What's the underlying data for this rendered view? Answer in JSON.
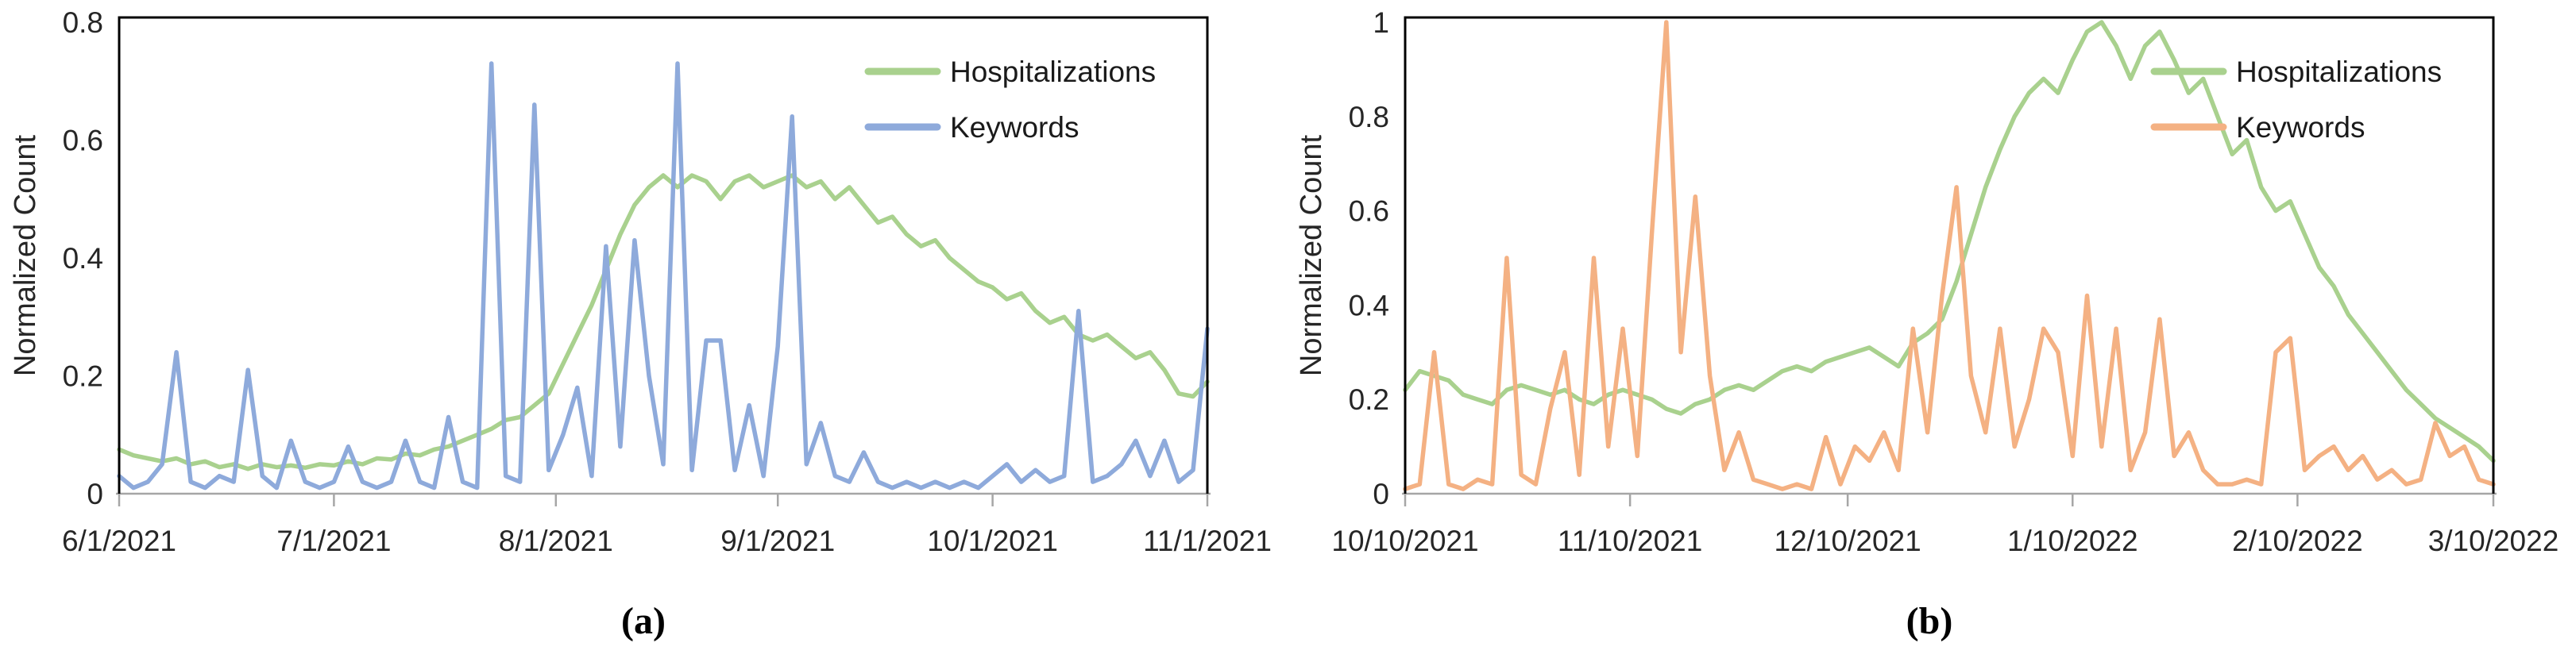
{
  "figure": {
    "ylabel": "Normalized Count",
    "legend": {
      "hospitalizations": "Hospitalizations",
      "keywords": "Keywords"
    },
    "colors": {
      "hospitalizations": "#A9D18E",
      "keywords_panel_a": "#8EAADB",
      "keywords_panel_b": "#F4B183",
      "axis_text": "#262626",
      "plot_border": "#000000",
      "baseline": "#A6A6A6"
    }
  },
  "chart_data": [
    {
      "id": "a",
      "type": "line",
      "caption": "(a)",
      "title": "",
      "xlabel": "",
      "ylabel": "Normalized Count",
      "ylim": [
        0,
        0.8
      ],
      "yticks": [
        0,
        0.2,
        0.4,
        0.6,
        0.8
      ],
      "ytick_labels": [
        "0",
        "0.2",
        "0.4",
        "0.6",
        "0.8"
      ],
      "xtick_labels": [
        "6/1/2021",
        "7/1/2021",
        "8/1/2021",
        "9/1/2021",
        "10/1/2021",
        "11/1/2021"
      ],
      "xticks_days": [
        0,
        30,
        61,
        92,
        122,
        152
      ],
      "x_max": 152,
      "grid": false,
      "legend_position": "top-right-inside",
      "x": [
        0,
        2,
        4,
        6,
        8,
        10,
        12,
        14,
        16,
        18,
        20,
        22,
        24,
        26,
        28,
        30,
        32,
        34,
        36,
        38,
        40,
        42,
        44,
        46,
        48,
        50,
        52,
        54,
        56,
        58,
        60,
        62,
        64,
        66,
        68,
        70,
        72,
        74,
        76,
        78,
        80,
        82,
        84,
        86,
        88,
        90,
        92,
        94,
        96,
        98,
        100,
        102,
        104,
        106,
        108,
        110,
        112,
        114,
        116,
        118,
        120,
        122,
        124,
        126,
        128,
        130,
        132,
        134,
        136,
        138,
        140,
        142,
        144,
        146,
        148,
        150,
        152
      ],
      "series": [
        {
          "name": "Hospitalizations",
          "color": "#A9D18E",
          "values": [
            0.075,
            0.065,
            0.06,
            0.055,
            0.06,
            0.05,
            0.055,
            0.045,
            0.05,
            0.042,
            0.05,
            0.045,
            0.048,
            0.044,
            0.05,
            0.048,
            0.055,
            0.05,
            0.06,
            0.058,
            0.068,
            0.065,
            0.075,
            0.08,
            0.09,
            0.1,
            0.11,
            0.125,
            0.13,
            0.15,
            0.17,
            0.22,
            0.27,
            0.32,
            0.38,
            0.44,
            0.49,
            0.52,
            0.54,
            0.52,
            0.54,
            0.53,
            0.5,
            0.53,
            0.54,
            0.52,
            0.53,
            0.54,
            0.52,
            0.53,
            0.5,
            0.52,
            0.49,
            0.46,
            0.47,
            0.44,
            0.42,
            0.43,
            0.4,
            0.38,
            0.36,
            0.35,
            0.33,
            0.34,
            0.31,
            0.29,
            0.3,
            0.27,
            0.26,
            0.27,
            0.25,
            0.23,
            0.24,
            0.21,
            0.17,
            0.165,
            0.19
          ]
        },
        {
          "name": "Keywords",
          "color": "#8EAADB",
          "values": [
            0.03,
            0.01,
            0.02,
            0.05,
            0.24,
            0.02,
            0.01,
            0.03,
            0.02,
            0.21,
            0.03,
            0.01,
            0.09,
            0.02,
            0.01,
            0.02,
            0.08,
            0.02,
            0.01,
            0.02,
            0.09,
            0.02,
            0.01,
            0.13,
            0.02,
            0.01,
            0.73,
            0.03,
            0.02,
            0.66,
            0.04,
            0.1,
            0.18,
            0.03,
            0.42,
            0.08,
            0.43,
            0.2,
            0.05,
            0.73,
            0.04,
            0.26,
            0.26,
            0.04,
            0.15,
            0.03,
            0.25,
            0.64,
            0.05,
            0.12,
            0.03,
            0.02,
            0.07,
            0.02,
            0.01,
            0.02,
            0.01,
            0.02,
            0.01,
            0.02,
            0.01,
            0.03,
            0.05,
            0.02,
            0.04,
            0.02,
            0.03,
            0.31,
            0.02,
            0.03,
            0.05,
            0.09,
            0.03,
            0.09,
            0.02,
            0.04,
            0.28
          ]
        }
      ]
    },
    {
      "id": "b",
      "type": "line",
      "caption": "(b)",
      "title": "",
      "xlabel": "",
      "ylabel": "Normalized Count",
      "ylim": [
        0,
        1
      ],
      "yticks": [
        0,
        0.2,
        0.4,
        0.6,
        0.8,
        1
      ],
      "ytick_labels": [
        "0",
        "0.2",
        "0.4",
        "0.6",
        "0.8",
        "1"
      ],
      "xtick_labels": [
        "10/10/2021",
        "11/10/2021",
        "12/10/2021",
        "1/10/2022",
        "2/10/2022",
        "3/10/2022"
      ],
      "xticks_days": [
        0,
        31,
        61,
        92,
        123,
        150
      ],
      "x_max": 150,
      "grid": false,
      "legend_position": "top-right-inside",
      "x": [
        0,
        2,
        4,
        6,
        8,
        10,
        12,
        14,
        16,
        18,
        20,
        22,
        24,
        26,
        28,
        30,
        32,
        34,
        36,
        38,
        40,
        42,
        44,
        46,
        48,
        50,
        52,
        54,
        56,
        58,
        60,
        62,
        64,
        66,
        68,
        70,
        72,
        74,
        76,
        78,
        80,
        82,
        84,
        86,
        88,
        90,
        92,
        94,
        96,
        98,
        100,
        102,
        104,
        106,
        108,
        110,
        112,
        114,
        116,
        118,
        120,
        122,
        124,
        126,
        128,
        130,
        132,
        134,
        136,
        138,
        140,
        142,
        144,
        146,
        148,
        150
      ],
      "series": [
        {
          "name": "Hospitalizations",
          "color": "#A9D18E",
          "values": [
            0.22,
            0.26,
            0.25,
            0.24,
            0.21,
            0.2,
            0.19,
            0.22,
            0.23,
            0.22,
            0.21,
            0.22,
            0.2,
            0.19,
            0.21,
            0.22,
            0.21,
            0.2,
            0.18,
            0.17,
            0.19,
            0.2,
            0.22,
            0.23,
            0.22,
            0.24,
            0.26,
            0.27,
            0.26,
            0.28,
            0.29,
            0.3,
            0.31,
            0.29,
            0.27,
            0.32,
            0.34,
            0.37,
            0.45,
            0.55,
            0.65,
            0.73,
            0.8,
            0.85,
            0.88,
            0.85,
            0.92,
            0.98,
            1.0,
            0.95,
            0.88,
            0.95,
            0.98,
            0.92,
            0.85,
            0.88,
            0.8,
            0.72,
            0.75,
            0.65,
            0.6,
            0.62,
            0.55,
            0.48,
            0.44,
            0.38,
            0.34,
            0.3,
            0.26,
            0.22,
            0.19,
            0.16,
            0.14,
            0.12,
            0.1,
            0.07
          ]
        },
        {
          "name": "Keywords",
          "color": "#F4B183",
          "values": [
            0.01,
            0.02,
            0.3,
            0.02,
            0.01,
            0.03,
            0.02,
            0.5,
            0.04,
            0.02,
            0.18,
            0.3,
            0.04,
            0.5,
            0.1,
            0.35,
            0.08,
            0.55,
            1.0,
            0.3,
            0.63,
            0.25,
            0.05,
            0.13,
            0.03,
            0.02,
            0.01,
            0.02,
            0.01,
            0.12,
            0.02,
            0.1,
            0.07,
            0.13,
            0.05,
            0.35,
            0.13,
            0.42,
            0.65,
            0.25,
            0.13,
            0.35,
            0.1,
            0.2,
            0.35,
            0.3,
            0.08,
            0.42,
            0.1,
            0.35,
            0.05,
            0.13,
            0.37,
            0.08,
            0.13,
            0.05,
            0.02,
            0.02,
            0.03,
            0.02,
            0.3,
            0.33,
            0.05,
            0.08,
            0.1,
            0.05,
            0.08,
            0.03,
            0.05,
            0.02,
            0.03,
            0.15,
            0.08,
            0.1,
            0.03,
            0.02
          ]
        }
      ]
    }
  ]
}
